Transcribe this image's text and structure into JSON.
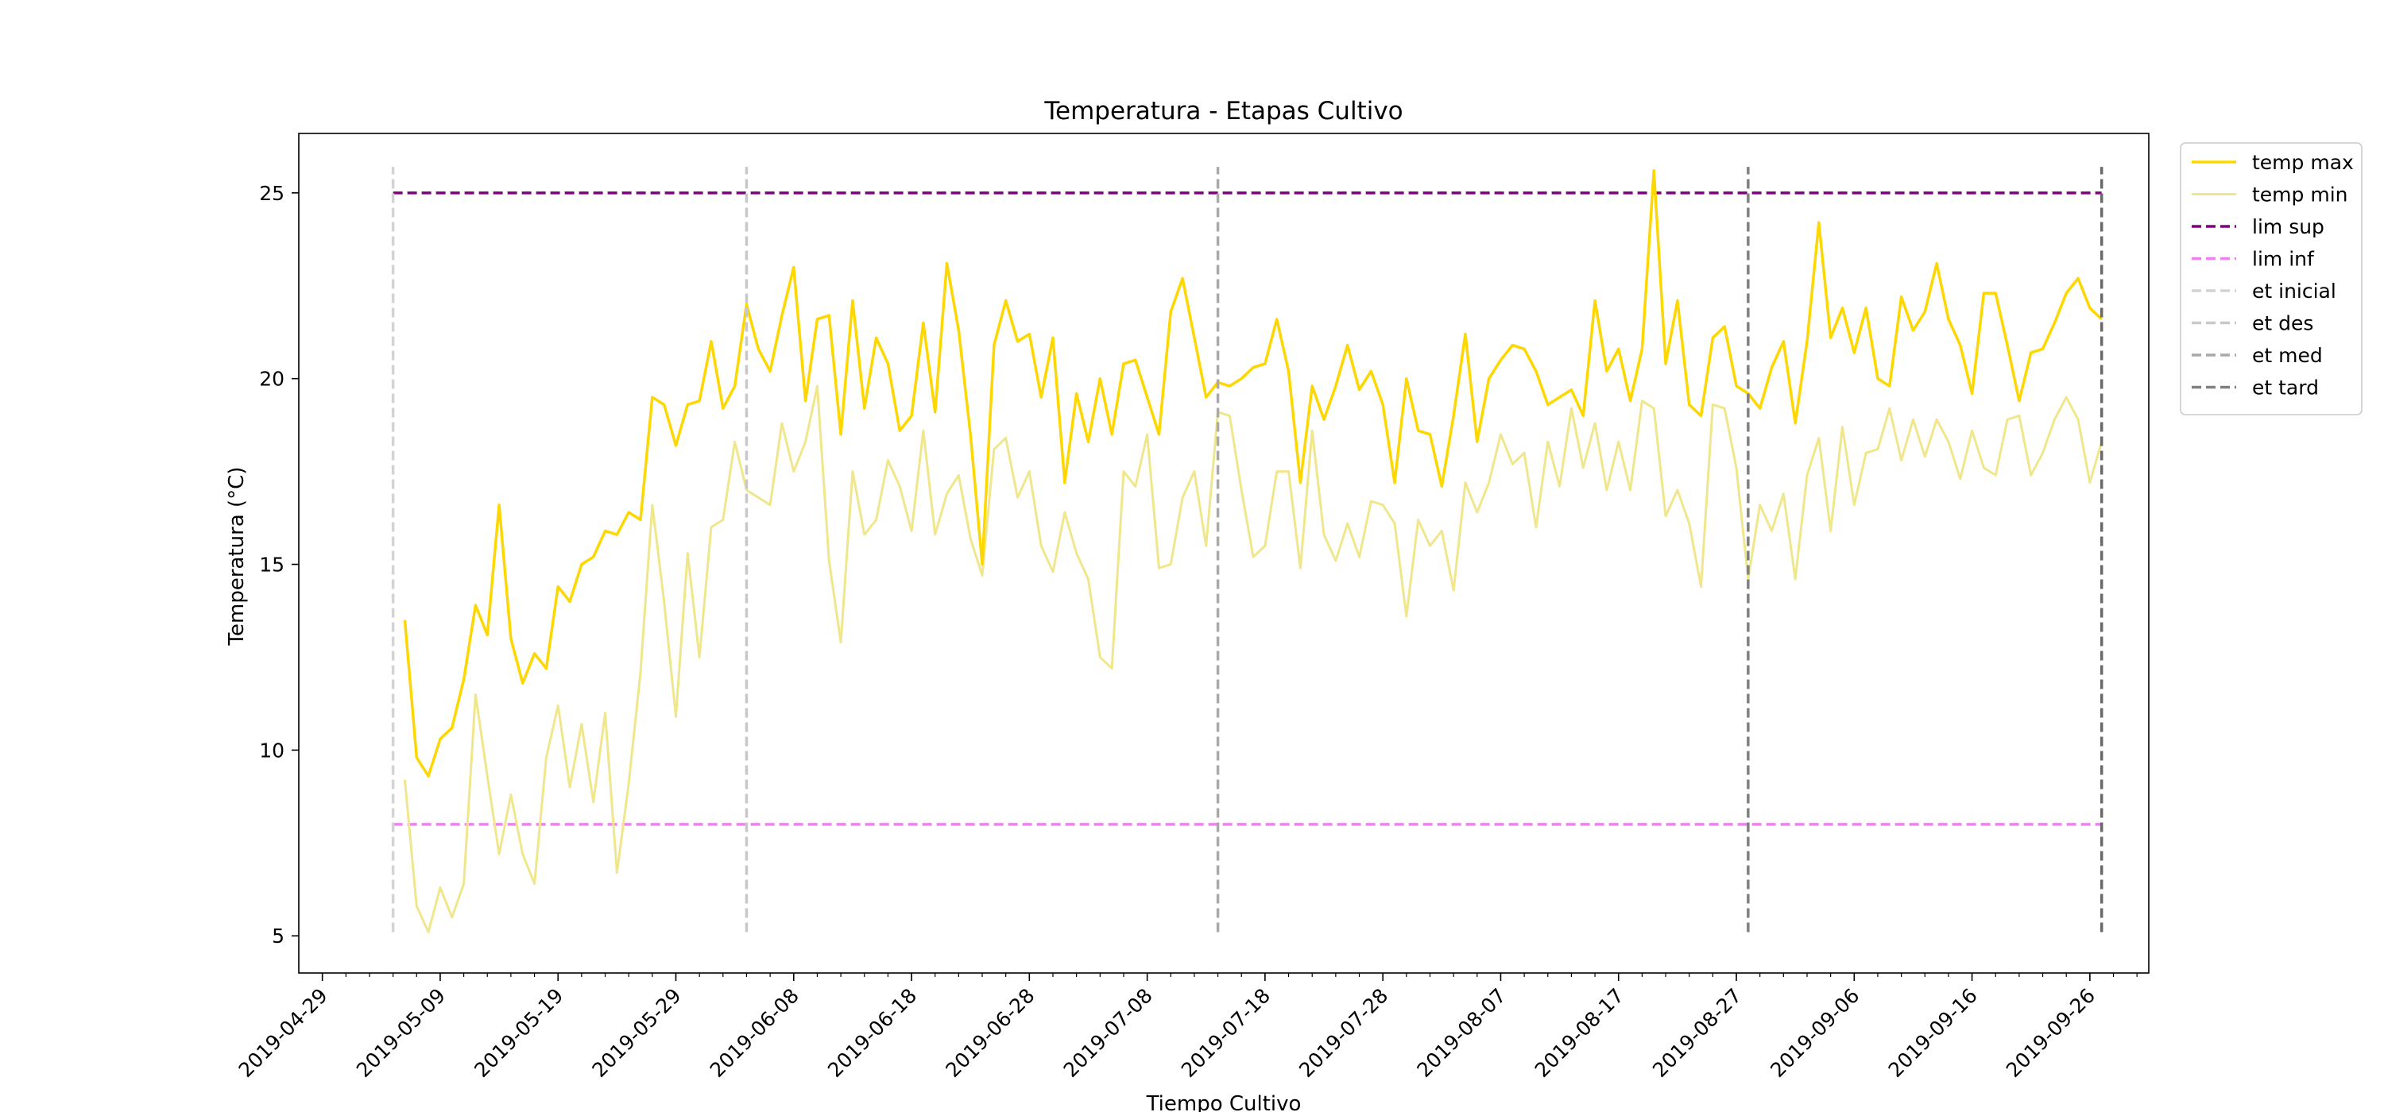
{
  "chart_data": {
    "type": "line",
    "title": "Temperatura - Etapas Cultivo",
    "xlabel": "Tiempo Cultivo",
    "ylabel": "Temperatura (°C)",
    "xlim": [
      "2019-04-27",
      "2019-10-01"
    ],
    "ylim": [
      4.0,
      26.6
    ],
    "yticks": [
      5,
      10,
      15,
      20,
      25
    ],
    "xticks": [
      "2019-04-29",
      "2019-05-09",
      "2019-05-19",
      "2019-05-29",
      "2019-06-08",
      "2019-06-18",
      "2019-06-28",
      "2019-07-08",
      "2019-07-18",
      "2019-07-28",
      "2019-08-07",
      "2019-08-17",
      "2019-08-27",
      "2019-09-06",
      "2019-09-16",
      "2019-09-26"
    ],
    "x_start": "2019-05-06",
    "x_end": "2019-09-29",
    "grid": false,
    "legend_position": "outside right top",
    "series": [
      {
        "name": "temp max",
        "color": "#FFD700",
        "style": "solid",
        "values": [
          13.5,
          9.8,
          9.3,
          10.3,
          10.6,
          11.9,
          13.9,
          13.1,
          16.6,
          13.0,
          11.8,
          12.6,
          12.2,
          14.4,
          14.0,
          15.0,
          15.2,
          15.9,
          15.8,
          16.4,
          16.2,
          19.5,
          19.3,
          18.2,
          19.3,
          19.4,
          21.0,
          19.2,
          19.8,
          22.0,
          20.8,
          20.2,
          21.7,
          23.0,
          19.4,
          21.6,
          21.7,
          18.5,
          22.1,
          19.2,
          21.1,
          20.4,
          18.6,
          19.0,
          21.5,
          19.1,
          23.1,
          21.3,
          18.5,
          15.0,
          20.9,
          22.1,
          21.0,
          21.2,
          19.5,
          21.1,
          17.2,
          19.6,
          18.3,
          20.0,
          18.5,
          20.4,
          20.5,
          19.5,
          18.5,
          21.8,
          22.7,
          21.1,
          19.5,
          19.9,
          19.8,
          20.0,
          20.3,
          20.4,
          21.6,
          20.2,
          17.2,
          19.8,
          18.9,
          19.8,
          20.9,
          19.7,
          20.2,
          19.3,
          17.2,
          20.0,
          18.6,
          18.5,
          17.1,
          19.0,
          21.2,
          18.3,
          20.0,
          20.5,
          20.9,
          20.8,
          20.2,
          19.3,
          19.5,
          19.7,
          19.0,
          22.1,
          20.2,
          20.8,
          19.4,
          20.8,
          25.6,
          20.4,
          22.1,
          19.3,
          19.0,
          21.1,
          21.4,
          19.8,
          19.6,
          19.2,
          20.3,
          21.0,
          18.8,
          21.0,
          24.2,
          21.1,
          21.9,
          20.7,
          21.9,
          20.0,
          19.8,
          22.2,
          21.3,
          21.8,
          23.1,
          21.6,
          20.9,
          19.6,
          22.3,
          22.3,
          20.9,
          19.4,
          20.7,
          20.8,
          21.5,
          22.3,
          22.7,
          21.9,
          21.6
        ]
      },
      {
        "name": "temp min",
        "color": "#F0E68C",
        "style": "solid",
        "values": [
          9.2,
          5.8,
          5.1,
          6.3,
          5.5,
          6.4,
          11.5,
          9.3,
          7.2,
          8.8,
          7.2,
          6.4,
          9.8,
          11.2,
          9.0,
          10.7,
          8.6,
          11.0,
          6.7,
          9.1,
          12.1,
          16.6,
          14.0,
          10.9,
          15.3,
          12.5,
          16.0,
          16.2,
          18.3,
          17.0,
          16.8,
          16.6,
          18.8,
          17.5,
          18.3,
          19.8,
          15.1,
          12.9,
          17.5,
          15.8,
          16.2,
          17.8,
          17.1,
          15.9,
          18.6,
          15.8,
          16.9,
          17.4,
          15.7,
          14.7,
          18.1,
          18.4,
          16.8,
          17.5,
          15.5,
          14.8,
          16.4,
          15.3,
          14.6,
          12.5,
          12.2,
          17.5,
          17.1,
          18.5,
          14.9,
          15.0,
          16.8,
          17.5,
          15.5,
          19.1,
          19.0,
          17.0,
          15.2,
          15.5,
          17.5,
          17.5,
          14.9,
          18.6,
          15.8,
          15.1,
          16.1,
          15.2,
          16.7,
          16.6,
          16.1,
          13.6,
          16.2,
          15.5,
          15.9,
          14.3,
          17.2,
          16.4,
          17.2,
          18.5,
          17.7,
          18.0,
          16.0,
          18.3,
          17.1,
          19.2,
          17.6,
          18.8,
          17.0,
          18.3,
          17.0,
          19.4,
          19.2,
          16.3,
          17.0,
          16.1,
          14.4,
          19.3,
          19.2,
          17.6,
          14.6,
          16.6,
          15.9,
          16.9,
          14.6,
          17.4,
          18.4,
          15.9,
          18.7,
          16.6,
          18.0,
          18.1,
          19.2,
          17.8,
          18.9,
          17.9,
          18.9,
          18.3,
          17.3,
          18.6,
          17.6,
          17.4,
          18.9,
          19.0,
          17.4,
          18.0,
          18.9,
          19.5,
          18.9,
          17.2,
          18.3
        ]
      }
    ],
    "hlines": [
      {
        "name": "lim sup",
        "y": 25,
        "color": "#800080",
        "style": "dashed"
      },
      {
        "name": "lim inf",
        "y": 8,
        "color": "#EE82EE",
        "style": "dashed"
      }
    ],
    "vlines": [
      {
        "name": "et inicial",
        "x": "2019-05-05",
        "color": "#D3D3D3"
      },
      {
        "name": "et des",
        "x": "2019-06-04",
        "color": "#C8C8C8"
      },
      {
        "name": "et med",
        "x": "2019-07-14",
        "color": "#A9A9A9"
      },
      {
        "name": "et tard",
        "x": "2019-08-28",
        "color": "#808080"
      },
      {
        "name": "",
        "x": "2019-09-27",
        "color": "#696969"
      }
    ],
    "vline_range": [
      5.1,
      25.7
    ],
    "legend": [
      {
        "label": "temp max",
        "color": "#FFD700",
        "style": "solid",
        "width": 3.5
      },
      {
        "label": "temp min",
        "color": "#F0E68C",
        "style": "solid",
        "width": 3
      },
      {
        "label": "lim sup",
        "color": "#800080",
        "style": "dashed",
        "width": 3.5
      },
      {
        "label": "lim inf",
        "color": "#EE82EE",
        "style": "dashed",
        "width": 3.5
      },
      {
        "label": "et inicial",
        "color": "#D3D3D3",
        "style": "dashed",
        "width": 3.5
      },
      {
        "label": "et des",
        "color": "#C8C8C8",
        "style": "dashed",
        "width": 3.5
      },
      {
        "label": "et med",
        "color": "#A9A9A9",
        "style": "dashed",
        "width": 3.5
      },
      {
        "label": "et tard",
        "color": "#808080",
        "style": "dashed",
        "width": 3.5
      }
    ]
  }
}
